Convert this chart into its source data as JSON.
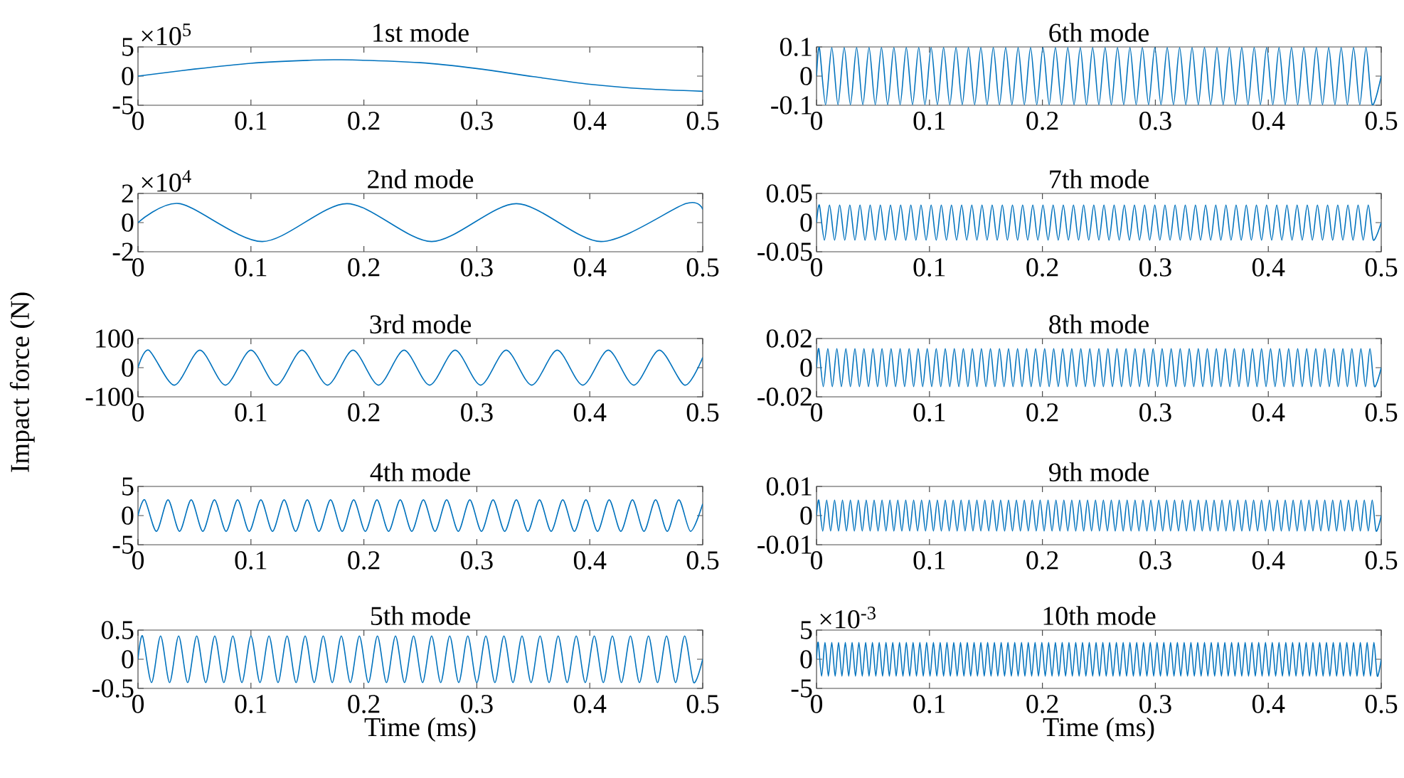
{
  "chart_data": [
    {
      "type": "line",
      "title": "1st mode",
      "color": "#0072bd",
      "annotations": [
        "×10$^{5}$"
      ],
      "xlim": [
        0,
        0.5
      ],
      "ylim": [
        -5,
        5
      ],
      "xticks": [
        0,
        0.1,
        0.2,
        0.3,
        0.4,
        0.5
      ],
      "yticks": [
        5,
        0,
        -5
      ],
      "x": [
        0,
        0.05,
        0.1,
        0.15,
        0.18,
        0.25,
        0.3,
        0.35,
        0.4,
        0.45,
        0.5
      ],
      "values": [
        0,
        1.2,
        2.2,
        2.7,
        2.8,
        2.3,
        1.3,
        -0.1,
        -1.4,
        -2.2,
        -2.6
      ]
    },
    {
      "type": "line",
      "title": "2nd mode",
      "color": "#0072bd",
      "annotations": [
        "×10$^{4}$"
      ],
      "xlim": [
        0,
        0.5
      ],
      "ylim": [
        -2,
        2
      ],
      "xticks": [
        0,
        0.1,
        0.2,
        0.3,
        0.4,
        0.5
      ],
      "yticks": [
        2,
        0,
        -2
      ],
      "x": [
        0,
        0.037,
        0.11,
        0.185,
        0.26,
        0.335,
        0.41,
        0.485,
        0.5
      ],
      "values": [
        0,
        1.3,
        -1.3,
        1.3,
        -1.3,
        1.3,
        -1.3,
        1.3,
        0.9
      ]
    },
    {
      "type": "line",
      "title": "3rd mode",
      "ylabel": "Impact force (N)",
      "color": "#0072bd",
      "xlim": [
        0,
        0.5
      ],
      "ylim": [
        -100,
        100
      ],
      "xticks": [
        0,
        0.1,
        0.2,
        0.3,
        0.4,
        0.5
      ],
      "yticks": [
        100,
        0,
        -100
      ],
      "x": [
        0,
        0.0096,
        0.0322,
        0.0548,
        0.0774,
        0.1,
        0.1226,
        0.1452,
        0.1678,
        0.1904,
        0.213,
        0.2356,
        0.2582,
        0.2808,
        0.3034,
        0.326,
        0.3486,
        0.3712,
        0.3938,
        0.4164,
        0.439,
        0.4616,
        0.4842,
        0.5
      ],
      "values": [
        0,
        60,
        -60,
        60,
        -60,
        60,
        -60,
        60,
        -60,
        60,
        -60,
        60,
        -60,
        60,
        -60,
        60,
        -60,
        60,
        -60,
        60,
        -60,
        60,
        -60,
        35
      ]
    },
    {
      "type": "line",
      "title": "4th mode",
      "color": "#0072bd",
      "xlim": [
        0,
        0.5
      ],
      "ylim": [
        -5,
        5
      ],
      "xticks": [
        0,
        0.1,
        0.2,
        0.3,
        0.4,
        0.5
      ],
      "yticks": [
        5,
        0,
        -5
      ],
      "x": [
        0,
        0.006,
        0.0163,
        0.0266,
        0.0368,
        0.0471,
        0.0574,
        0.0677,
        0.078,
        0.0882,
        0.0985,
        0.1088,
        0.1191,
        0.1294,
        0.1396,
        0.1499,
        0.1602,
        0.1705,
        0.1808,
        0.191,
        0.2013,
        0.2116,
        0.2219,
        0.2322,
        0.2424,
        0.2527,
        0.263,
        0.2733,
        0.2836,
        0.2938,
        0.3041,
        0.3144,
        0.3247,
        0.335,
        0.3452,
        0.3555,
        0.3658,
        0.3761,
        0.3864,
        0.3966,
        0.4069,
        0.4172,
        0.4275,
        0.4378,
        0.448,
        0.4583,
        0.4686,
        0.4789,
        0.4892,
        0.5
      ],
      "values": [
        0,
        2.7,
        -2.7,
        2.7,
        -2.7,
        2.7,
        -2.7,
        2.7,
        -2.7,
        2.7,
        -2.7,
        2.7,
        -2.7,
        2.7,
        -2.7,
        2.7,
        -2.7,
        2.7,
        -2.7,
        2.7,
        -2.7,
        2.7,
        -2.7,
        2.7,
        -2.7,
        2.7,
        -2.7,
        2.7,
        -2.7,
        2.7,
        -2.7,
        2.7,
        -2.7,
        2.7,
        -2.7,
        2.7,
        -2.7,
        2.7,
        -2.7,
        2.7,
        -2.7,
        2.7,
        -2.7,
        2.7,
        -2.7,
        2.7,
        -2.7,
        2.7,
        -2.7,
        2
      ]
    },
    {
      "type": "line",
      "title": "5th mode",
      "xlabel": "Time (ms)",
      "color": "#0072bd",
      "xlim": [
        0,
        0.5
      ],
      "ylim": [
        -0.5,
        0.5
      ],
      "xticks": [
        0,
        0.1,
        0.2,
        0.3,
        0.4,
        0.5
      ],
      "yticks": [
        0.5,
        0,
        -0.5
      ],
      "x": [
        0,
        0.004,
        0.012,
        0.02,
        0.028,
        0.036,
        0.044,
        0.052,
        0.06,
        0.068,
        0.076,
        0.084,
        0.092,
        0.1,
        0.108,
        0.116,
        0.124,
        0.132,
        0.14,
        0.148,
        0.156,
        0.164,
        0.172,
        0.18,
        0.188,
        0.196,
        0.204,
        0.212,
        0.22,
        0.228,
        0.236,
        0.244,
        0.252,
        0.26,
        0.268,
        0.276,
        0.284,
        0.292,
        0.3,
        0.308,
        0.316,
        0.324,
        0.332,
        0.34,
        0.348,
        0.356,
        0.364,
        0.372,
        0.38,
        0.388,
        0.396,
        0.404,
        0.412,
        0.42,
        0.428,
        0.436,
        0.444,
        0.452,
        0.46,
        0.468,
        0.476,
        0.484,
        0.492,
        0.5
      ],
      "values": [
        0,
        0.4,
        -0.4,
        0.4,
        -0.4,
        0.4,
        -0.4,
        0.4,
        -0.4,
        0.4,
        -0.4,
        0.4,
        -0.4,
        0.4,
        -0.4,
        0.4,
        -0.4,
        0.4,
        -0.4,
        0.4,
        -0.4,
        0.4,
        -0.4,
        0.4,
        -0.4,
        0.4,
        -0.4,
        0.4,
        -0.4,
        0.4,
        -0.4,
        0.4,
        -0.4,
        0.4,
        -0.4,
        0.4,
        -0.4,
        0.4,
        -0.4,
        0.4,
        -0.4,
        0.4,
        -0.4,
        0.4,
        -0.4,
        0.4,
        -0.4,
        0.4,
        -0.4,
        0.4,
        -0.4,
        0.4,
        -0.4,
        0.4,
        -0.4,
        0.4,
        -0.4,
        0.4,
        -0.4,
        0.4,
        -0.4,
        0.4,
        -0.4,
        0
      ]
    },
    {
      "type": "line",
      "title": "6th mode",
      "color": "#0072bd",
      "xlim": [
        0,
        0.5
      ],
      "ylim": [
        -0.1,
        0.1
      ],
      "xticks": [
        0,
        0.1,
        0.2,
        0.3,
        0.4,
        0.5
      ],
      "yticks": [
        0.1,
        0,
        -0.1
      ],
      "x": [
        0,
        0.0025,
        0.008,
        0.0135,
        0.019,
        0.0245,
        0.03,
        0.0355,
        0.041,
        0.0465,
        0.052,
        0.0575,
        0.063,
        0.0685,
        0.074,
        0.0795,
        0.085,
        0.0905,
        0.096,
        0.1015,
        0.107,
        0.1125,
        0.118,
        0.1235,
        0.129,
        0.1345,
        0.14,
        0.1455,
        0.151,
        0.1565,
        0.162,
        0.1675,
        0.173,
        0.1785,
        0.184,
        0.1895,
        0.195,
        0.2005,
        0.206,
        0.2115,
        0.217,
        0.2225,
        0.228,
        0.2335,
        0.239,
        0.2445,
        0.25,
        0.2555,
        0.261,
        0.2665,
        0.272,
        0.2775,
        0.283,
        0.2885,
        0.294,
        0.2995,
        0.305,
        0.3105,
        0.316,
        0.3215,
        0.327,
        0.3325,
        0.338,
        0.3435,
        0.349,
        0.3545,
        0.36,
        0.3655,
        0.371,
        0.3765,
        0.382,
        0.3875,
        0.393,
        0.3985,
        0.404,
        0.4095,
        0.415,
        0.4205,
        0.426,
        0.4315,
        0.437,
        0.4425,
        0.448,
        0.4535,
        0.459,
        0.4645,
        0.47,
        0.4755,
        0.481,
        0.4865,
        0.492,
        0.5
      ],
      "values": [
        0,
        0.098,
        -0.098,
        0.098,
        -0.098,
        0.098,
        -0.098,
        0.098,
        -0.098,
        0.098,
        -0.098,
        0.098,
        -0.098,
        0.098,
        -0.098,
        0.098,
        -0.098,
        0.098,
        -0.098,
        0.098,
        -0.098,
        0.098,
        -0.098,
        0.098,
        -0.098,
        0.098,
        -0.098,
        0.098,
        -0.098,
        0.098,
        -0.098,
        0.098,
        -0.098,
        0.098,
        -0.098,
        0.098,
        -0.098,
        0.098,
        -0.098,
        0.098,
        -0.098,
        0.098,
        -0.098,
        0.098,
        -0.098,
        0.098,
        -0.098,
        0.098,
        -0.098,
        0.098,
        -0.098,
        0.098,
        -0.098,
        0.098,
        -0.098,
        0.098,
        -0.098,
        0.098,
        -0.098,
        0.098,
        -0.098,
        0.098,
        -0.098,
        0.098,
        -0.098,
        0.098,
        -0.098,
        0.098,
        -0.098,
        0.098,
        -0.098,
        0.098,
        -0.098,
        0.098,
        -0.098,
        0.098,
        -0.098,
        0.098,
        -0.098,
        0.098,
        -0.098,
        0.098,
        -0.098,
        0.098,
        -0.098,
        0.098,
        -0.098,
        0.098,
        -0.098,
        0.098,
        -0.098,
        0
      ]
    },
    {
      "type": "line",
      "title": "7th mode",
      "color": "#0072bd",
      "xlim": [
        0,
        0.5
      ],
      "ylim": [
        -0.05,
        0.05
      ],
      "xticks": [
        0,
        0.1,
        0.2,
        0.3,
        0.4,
        0.5
      ],
      "yticks": [
        0.05,
        0,
        -0.05
      ],
      "x": [
        0,
        0.0025,
        0.007,
        0.0115,
        0.016,
        0.0205,
        0.025,
        0.0295,
        0.034,
        0.0385,
        0.043,
        0.0475,
        0.052,
        0.0565,
        0.061,
        0.0655,
        0.07,
        0.0745,
        0.079,
        0.0835,
        0.088,
        0.0925,
        0.097,
        0.1015,
        0.106,
        0.1105,
        0.115,
        0.1195,
        0.124,
        0.1285,
        0.133,
        0.1375,
        0.142,
        0.1465,
        0.151,
        0.1555,
        0.16,
        0.1645,
        0.169,
        0.1735,
        0.178,
        0.1825,
        0.187,
        0.1915,
        0.196,
        0.2005,
        0.205,
        0.2095,
        0.214,
        0.2185,
        0.223,
        0.2275,
        0.232,
        0.2365,
        0.241,
        0.2455,
        0.25,
        0.2545,
        0.259,
        0.2635,
        0.268,
        0.2725,
        0.277,
        0.2815,
        0.286,
        0.2905,
        0.295,
        0.2995,
        0.304,
        0.3085,
        0.313,
        0.3175,
        0.322,
        0.3265,
        0.331,
        0.3355,
        0.34,
        0.3445,
        0.349,
        0.3535,
        0.358,
        0.3625,
        0.367,
        0.3715,
        0.376,
        0.3805,
        0.385,
        0.3895,
        0.394,
        0.3985,
        0.403,
        0.4075,
        0.412,
        0.4165,
        0.421,
        0.4255,
        0.43,
        0.4345,
        0.439,
        0.4435,
        0.448,
        0.4525,
        0.457,
        0.4615,
        0.466,
        0.4705,
        0.475,
        0.4795,
        0.484,
        0.4885,
        0.493,
        0.5
      ],
      "values": [
        0,
        0.03,
        -0.03,
        0.03,
        -0.03,
        0.03,
        -0.03,
        0.03,
        -0.03,
        0.03,
        -0.03,
        0.03,
        -0.03,
        0.03,
        -0.03,
        0.03,
        -0.03,
        0.03,
        -0.03,
        0.03,
        -0.03,
        0.03,
        -0.03,
        0.03,
        -0.03,
        0.03,
        -0.03,
        0.03,
        -0.03,
        0.03,
        -0.03,
        0.03,
        -0.03,
        0.03,
        -0.03,
        0.03,
        -0.03,
        0.03,
        -0.03,
        0.03,
        -0.03,
        0.03,
        -0.03,
        0.03,
        -0.03,
        0.03,
        -0.03,
        0.03,
        -0.03,
        0.03,
        -0.03,
        0.03,
        -0.03,
        0.03,
        -0.03,
        0.03,
        -0.03,
        0.03,
        -0.03,
        0.03,
        -0.03,
        0.03,
        -0.03,
        0.03,
        -0.03,
        0.03,
        -0.03,
        0.03,
        -0.03,
        0.03,
        -0.03,
        0.03,
        -0.03,
        0.03,
        -0.03,
        0.03,
        -0.03,
        0.03,
        -0.03,
        0.03,
        -0.03,
        0.03,
        -0.03,
        0.03,
        -0.03,
        0.03,
        -0.03,
        0.03,
        -0.03,
        0.03,
        -0.03,
        0.03,
        -0.03,
        0.03,
        -0.03,
        0.03,
        -0.03,
        0.03,
        -0.03,
        0.03,
        -0.03,
        0.03,
        -0.03,
        0.03,
        -0.03,
        0.03,
        -0.03,
        0.03,
        -0.03,
        0.03,
        -0.03,
        0
      ]
    },
    {
      "type": "line",
      "title": "8th mode",
      "color": "#0072bd",
      "xlim": [
        0,
        0.5
      ],
      "ylim": [
        -0.02,
        0.02
      ],
      "xticks": [
        0,
        0.1,
        0.2,
        0.3,
        0.4,
        0.5
      ],
      "yticks": [
        0.02,
        0,
        -0.02
      ],
      "x": [
        0,
        0.002,
        0.006,
        0.01,
        0.014,
        0.018,
        0.022,
        0.026,
        0.03,
        0.034,
        0.038,
        0.042,
        0.046,
        0.05,
        0.054,
        0.058,
        0.062,
        0.066,
        0.07,
        0.074,
        0.078,
        0.082,
        0.086,
        0.09,
        0.094,
        0.098,
        0.102,
        0.106,
        0.11,
        0.114,
        0.118,
        0.122,
        0.126,
        0.13,
        0.134,
        0.138,
        0.142,
        0.146,
        0.15,
        0.154,
        0.158,
        0.162,
        0.166,
        0.17,
        0.174,
        0.178,
        0.182,
        0.186,
        0.19,
        0.194,
        0.198,
        0.202,
        0.206,
        0.21,
        0.214,
        0.218,
        0.222,
        0.226,
        0.23,
        0.234,
        0.238,
        0.242,
        0.246,
        0.25,
        0.254,
        0.258,
        0.262,
        0.266,
        0.27,
        0.274,
        0.278,
        0.282,
        0.286,
        0.29,
        0.294,
        0.298,
        0.302,
        0.306,
        0.31,
        0.314,
        0.318,
        0.322,
        0.326,
        0.33,
        0.334,
        0.338,
        0.342,
        0.346,
        0.35,
        0.354,
        0.358,
        0.362,
        0.366,
        0.37,
        0.374,
        0.378,
        0.382,
        0.386,
        0.39,
        0.394,
        0.398,
        0.402,
        0.406,
        0.41,
        0.414,
        0.418,
        0.422,
        0.426,
        0.43,
        0.434,
        0.438,
        0.442,
        0.446,
        0.45,
        0.454,
        0.458,
        0.462,
        0.466,
        0.47,
        0.474,
        0.478,
        0.482,
        0.486,
        0.49,
        0.494,
        0.5
      ],
      "values": [
        0,
        0.013,
        -0.013,
        0.013,
        -0.013,
        0.013,
        -0.013,
        0.013,
        -0.013,
        0.013,
        -0.013,
        0.013,
        -0.013,
        0.013,
        -0.013,
        0.013,
        -0.013,
        0.013,
        -0.013,
        0.013,
        -0.013,
        0.013,
        -0.013,
        0.013,
        -0.013,
        0.013,
        -0.013,
        0.013,
        -0.013,
        0.013,
        -0.013,
        0.013,
        -0.013,
        0.013,
        -0.013,
        0.013,
        -0.013,
        0.013,
        -0.013,
        0.013,
        -0.013,
        0.013,
        -0.013,
        0.013,
        -0.013,
        0.013,
        -0.013,
        0.013,
        -0.013,
        0.013,
        -0.013,
        0.013,
        -0.013,
        0.013,
        -0.013,
        0.013,
        -0.013,
        0.013,
        -0.013,
        0.013,
        -0.013,
        0.013,
        -0.013,
        0.013,
        -0.013,
        0.013,
        -0.013,
        0.013,
        -0.013,
        0.013,
        -0.013,
        0.013,
        -0.013,
        0.013,
        -0.013,
        0.013,
        -0.013,
        0.013,
        -0.013,
        0.013,
        -0.013,
        0.013,
        -0.013,
        0.013,
        -0.013,
        0.013,
        -0.013,
        0.013,
        -0.013,
        0.013,
        -0.013,
        0.013,
        -0.013,
        0.013,
        -0.013,
        0.013,
        -0.013,
        0.013,
        -0.013,
        0.013,
        -0.013,
        0.013,
        -0.013,
        0.013,
        -0.013,
        0.013,
        -0.013,
        0.013,
        -0.013,
        0.013,
        -0.013,
        0.013,
        -0.013,
        0.013,
        -0.013,
        0.013,
        -0.013,
        0.013,
        -0.013,
        0.013,
        -0.013,
        0.013,
        -0.013,
        0.013,
        -0.013,
        0
      ]
    },
    {
      "type": "line",
      "title": "9th mode",
      "color": "#0072bd",
      "xlim": [
        0,
        0.5
      ],
      "ylim": [
        -0.01,
        0.01
      ],
      "xticks": [
        0,
        0.1,
        0.2,
        0.3,
        0.4,
        0.5
      ],
      "yticks": [
        0.01,
        0,
        -0.01
      ],
      "x": [
        0,
        0.002,
        0.0055,
        0.009,
        0.0125,
        0.016,
        0.0195,
        0.023,
        0.0265,
        0.03,
        0.0335,
        0.037,
        0.0405,
        0.044,
        0.0475,
        0.051,
        0.0545,
        0.058,
        0.0615,
        0.065,
        0.0685,
        0.072,
        0.0755,
        0.079,
        0.0825,
        0.086,
        0.0895,
        0.093,
        0.0965,
        0.1,
        0.1035,
        0.107,
        0.1105,
        0.114,
        0.1175,
        0.121,
        0.1245,
        0.128,
        0.1315,
        0.135,
        0.1385,
        0.142,
        0.1455,
        0.149,
        0.1525,
        0.156,
        0.1595,
        0.163,
        0.1665,
        0.17,
        0.1735,
        0.177,
        0.1805,
        0.184,
        0.1875,
        0.191,
        0.1945,
        0.198,
        0.2015,
        0.205,
        0.2085,
        0.212,
        0.2155,
        0.219,
        0.2225,
        0.226,
        0.2295,
        0.233,
        0.2365,
        0.24,
        0.2435,
        0.247,
        0.2505,
        0.254,
        0.2575,
        0.261,
        0.2645,
        0.268,
        0.2715,
        0.275,
        0.2785,
        0.282,
        0.2855,
        0.289,
        0.2925,
        0.296,
        0.2995,
        0.303,
        0.3065,
        0.31,
        0.3135,
        0.317,
        0.3205,
        0.324,
        0.3275,
        0.331,
        0.3345,
        0.338,
        0.3415,
        0.345,
        0.3485,
        0.352,
        0.3555,
        0.359,
        0.3625,
        0.366,
        0.3695,
        0.373,
        0.3765,
        0.38,
        0.3835,
        0.387,
        0.3905,
        0.394,
        0.3975,
        0.401,
        0.4045,
        0.408,
        0.4115,
        0.415,
        0.4185,
        0.422,
        0.4255,
        0.429,
        0.4325,
        0.436,
        0.4395,
        0.443,
        0.4465,
        0.45,
        0.4535,
        0.457,
        0.4605,
        0.464,
        0.4675,
        0.471,
        0.4745,
        0.478,
        0.4815,
        0.485,
        0.4885,
        0.492,
        0.4955,
        0.5
      ],
      "values": [
        0,
        0.0053,
        -0.0053,
        0.0053,
        -0.0053,
        0.0053,
        -0.0053,
        0.0053,
        -0.0053,
        0.0053,
        -0.0053,
        0.0053,
        -0.0053,
        0.0053,
        -0.0053,
        0.0053,
        -0.0053,
        0.0053,
        -0.0053,
        0.0053,
        -0.0053,
        0.0053,
        -0.0053,
        0.0053,
        -0.0053,
        0.0053,
        -0.0053,
        0.0053,
        -0.0053,
        0.0053,
        -0.0053,
        0.0053,
        -0.0053,
        0.0053,
        -0.0053,
        0.0053,
        -0.0053,
        0.0053,
        -0.0053,
        0.0053,
        -0.0053,
        0.0053,
        -0.0053,
        0.0053,
        -0.0053,
        0.0053,
        -0.0053,
        0.0053,
        -0.0053,
        0.0053,
        -0.0053,
        0.0053,
        -0.0053,
        0.0053,
        -0.0053,
        0.0053,
        -0.0053,
        0.0053,
        -0.0053,
        0.0053,
        -0.0053,
        0.0053,
        -0.0053,
        0.0053,
        -0.0053,
        0.0053,
        -0.0053,
        0.0053,
        -0.0053,
        0.0053,
        -0.0053,
        0.0053,
        -0.0053,
        0.0053,
        -0.0053,
        0.0053,
        -0.0053,
        0.0053,
        -0.0053,
        0.0053,
        -0.0053,
        0.0053,
        -0.0053,
        0.0053,
        -0.0053,
        0.0053,
        -0.0053,
        0.0053,
        -0.0053,
        0.0053,
        -0.0053,
        0.0053,
        -0.0053,
        0.0053,
        -0.0053,
        0.0053,
        -0.0053,
        0.0053,
        -0.0053,
        0.0053,
        -0.0053,
        0.0053,
        -0.0053,
        0.0053,
        -0.0053,
        0.0053,
        -0.0053,
        0.0053,
        -0.0053,
        0.0053,
        -0.0053,
        0.0053,
        -0.0053,
        0.0053,
        -0.0053,
        0.0053,
        -0.0053,
        0.0053,
        -0.0053,
        0.0053,
        -0.0053,
        0.0053,
        -0.0053,
        0.0053,
        -0.0053,
        0.0053,
        -0.0053,
        0.0053,
        -0.0053,
        0.0053,
        -0.0053,
        0.0053,
        -0.0053,
        0.0053,
        -0.0053,
        0.0053,
        -0.0053,
        0.0053,
        -0.0053,
        0.0053,
        -0.0053,
        0.0053,
        -0.0053,
        0
      ]
    },
    {
      "type": "line",
      "title": "10th mode",
      "xlabel": "Time (ms)",
      "color": "#0072bd",
      "annotations": [
        "×10$^{-3}$"
      ],
      "xlim": [
        0,
        0.5
      ],
      "ylim": [
        -5,
        5
      ],
      "xticks": [
        0,
        0.1,
        0.2,
        0.3,
        0.4,
        0.5
      ],
      "yticks": [
        5,
        0,
        -5
      ],
      "x": [
        0,
        0.0015,
        0.0045,
        0.0075,
        0.0105,
        0.0135,
        0.0165,
        0.0195,
        0.0225,
        0.0255,
        0.0285,
        0.0315,
        0.0345,
        0.0375,
        0.0405,
        0.0435,
        0.0465,
        0.0495,
        0.0525,
        0.0555,
        0.0585,
        0.0615,
        0.0645,
        0.0675,
        0.0705,
        0.0735,
        0.0765,
        0.0795,
        0.0825,
        0.0855,
        0.0885,
        0.0915,
        0.0945,
        0.0975,
        0.1005,
        0.1035,
        0.1065,
        0.1095,
        0.1125,
        0.1155,
        0.1185,
        0.1215,
        0.1245,
        0.1275,
        0.1305,
        0.1335,
        0.1365,
        0.1395,
        0.1425,
        0.1455,
        0.1485,
        0.1515,
        0.1545,
        0.1575,
        0.1605,
        0.1635,
        0.1665,
        0.1695,
        0.1725,
        0.1755,
        0.1785,
        0.1815,
        0.1845,
        0.1875,
        0.1905,
        0.1935,
        0.1965,
        0.1995,
        0.2025,
        0.2055,
        0.2085,
        0.2115,
        0.2145,
        0.2175,
        0.2205,
        0.2235,
        0.2265,
        0.2295,
        0.2325,
        0.2355,
        0.2385,
        0.2415,
        0.2445,
        0.2475,
        0.2505,
        0.2535,
        0.2565,
        0.2595,
        0.2625,
        0.2655,
        0.2685,
        0.2715,
        0.2745,
        0.2775,
        0.2805,
        0.2835,
        0.2865,
        0.2895,
        0.2925,
        0.2955,
        0.2985,
        0.3015,
        0.3045,
        0.3075,
        0.3105,
        0.3135,
        0.3165,
        0.3195,
        0.3225,
        0.3255,
        0.3285,
        0.3315,
        0.3345,
        0.3375,
        0.3405,
        0.3435,
        0.3465,
        0.3495,
        0.3525,
        0.3555,
        0.3585,
        0.3615,
        0.3645,
        0.3675,
        0.3705,
        0.3735,
        0.3765,
        0.3795,
        0.3825,
        0.3855,
        0.3885,
        0.3915,
        0.3945,
        0.3975,
        0.4005,
        0.4035,
        0.4065,
        0.4095,
        0.4125,
        0.4155,
        0.4185,
        0.4215,
        0.4245,
        0.4275,
        0.4305,
        0.4335,
        0.4365,
        0.4395,
        0.4425,
        0.4455,
        0.4485,
        0.4515,
        0.4545,
        0.4575,
        0.4605,
        0.4635,
        0.4665,
        0.4695,
        0.4725,
        0.4755,
        0.4785,
        0.4815,
        0.4845,
        0.4875,
        0.4905,
        0.4935,
        0.4965,
        0.5
      ],
      "values": [
        0,
        2.9,
        -2.9,
        2.9,
        -2.9,
        2.9,
        -2.9,
        2.9,
        -2.9,
        2.9,
        -2.9,
        2.9,
        -2.9,
        2.9,
        -2.9,
        2.9,
        -2.9,
        2.9,
        -2.9,
        2.9,
        -2.9,
        2.9,
        -2.9,
        2.9,
        -2.9,
        2.9,
        -2.9,
        2.9,
        -2.9,
        2.9,
        -2.9,
        2.9,
        -2.9,
        2.9,
        -2.9,
        2.9,
        -2.9,
        2.9,
        -2.9,
        2.9,
        -2.9,
        2.9,
        -2.9,
        2.9,
        -2.9,
        2.9,
        -2.9,
        2.9,
        -2.9,
        2.9,
        -2.9,
        2.9,
        -2.9,
        2.9,
        -2.9,
        2.9,
        -2.9,
        2.9,
        -2.9,
        2.9,
        -2.9,
        2.9,
        -2.9,
        2.9,
        -2.9,
        2.9,
        -2.9,
        2.9,
        -2.9,
        2.9,
        -2.9,
        2.9,
        -2.9,
        2.9,
        -2.9,
        2.9,
        -2.9,
        2.9,
        -2.9,
        2.9,
        -2.9,
        2.9,
        -2.9,
        2.9,
        -2.9,
        2.9,
        -2.9,
        2.9,
        -2.9,
        2.9,
        -2.9,
        2.9,
        -2.9,
        2.9,
        -2.9,
        2.9,
        -2.9,
        2.9,
        -2.9,
        2.9,
        -2.9,
        2.9,
        -2.9,
        2.9,
        -2.9,
        2.9,
        -2.9,
        2.9,
        -2.9,
        2.9,
        -2.9,
        2.9,
        -2.9,
        2.9,
        -2.9,
        2.9,
        -2.9,
        2.9,
        -2.9,
        2.9,
        -2.9,
        2.9,
        -2.9,
        2.9,
        -2.9,
        2.9,
        -2.9,
        2.9,
        -2.9,
        2.9,
        -2.9,
        2.9,
        -2.9,
        2.9,
        -2.9,
        2.9,
        -2.9,
        2.9,
        -2.9,
        2.9,
        -2.9,
        2.9,
        -2.9,
        2.9,
        -2.9,
        2.9,
        -2.9,
        2.9,
        -2.9,
        2.9,
        -2.9,
        2.9,
        -2.9,
        2.9,
        -2.9,
        2.9,
        -2.9,
        2.9,
        -2.9,
        2.9,
        -2.9,
        2.9,
        -2.9,
        2.9,
        -2.9,
        2.9,
        -2.9,
        0
      ]
    }
  ]
}
